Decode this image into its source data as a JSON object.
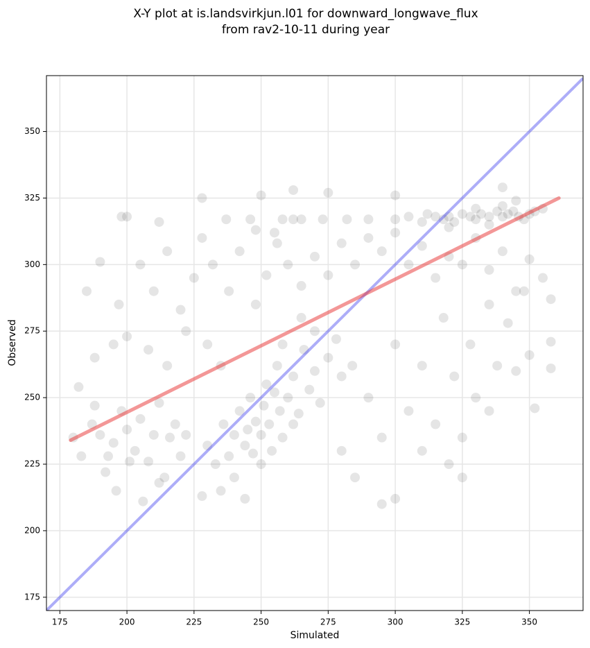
{
  "chart_data": {
    "type": "scatter",
    "title": [
      "X-Y plot at is.landsvirkjun.l01 for downward_longwave_flux",
      "from rav2-10-11 during year"
    ],
    "xlabel": "Simulated",
    "ylabel": "Observed",
    "xlim": [
      170,
      370
    ],
    "ylim": [
      170,
      371
    ],
    "xticks": [
      175,
      200,
      225,
      250,
      275,
      300,
      325,
      350
    ],
    "yticks": [
      175,
      200,
      225,
      250,
      275,
      300,
      325,
      350
    ],
    "grid": true,
    "color": "#000000",
    "x": [
      180,
      183,
      187,
      190,
      192,
      195,
      198,
      200,
      203,
      205,
      208,
      210,
      212,
      214,
      216,
      218,
      220,
      222,
      188,
      196,
      206,
      212,
      201,
      193,
      230,
      233,
      236,
      238,
      240,
      242,
      244,
      245,
      246,
      247,
      248,
      250,
      251,
      252,
      253,
      255,
      256,
      257,
      258,
      260,
      262,
      264,
      266,
      268,
      270,
      272,
      275,
      278,
      240,
      235,
      244,
      228,
      250,
      254,
      262,
      258,
      265,
      270,
      280,
      284,
      300,
      305,
      310,
      312,
      315,
      318,
      320,
      322,
      325,
      328,
      330,
      332,
      335,
      338,
      340,
      342,
      344,
      346,
      348,
      350,
      352,
      355,
      340,
      335,
      345,
      330,
      320,
      237,
      258,
      262,
      265,
      273,
      282,
      290,
      198,
      200,
      212,
      246,
      255,
      248,
      185,
      190,
      197,
      205,
      210,
      215,
      220,
      225,
      228,
      232,
      238,
      242,
      248,
      252,
      256,
      260,
      265,
      270,
      275,
      280,
      285,
      290,
      295,
      300,
      305,
      310,
      315,
      320,
      325,
      330,
      335,
      340,
      345,
      350,
      355,
      358,
      182,
      188,
      195,
      200,
      208,
      215,
      222,
      230,
      235,
      228,
      250,
      262,
      275,
      300,
      340,
      290,
      295,
      300,
      305,
      310,
      315,
      318,
      322,
      325,
      328,
      330,
      335,
      338,
      342,
      345,
      348,
      350,
      320,
      325,
      300,
      295,
      285,
      280,
      310,
      335,
      358,
      358,
      352
    ],
    "y": [
      235,
      228,
      240,
      236,
      222,
      233,
      245,
      238,
      230,
      242,
      226,
      236,
      248,
      220,
      235,
      240,
      228,
      236,
      247,
      215,
      211,
      218,
      226,
      228,
      232,
      225,
      240,
      228,
      236,
      245,
      232,
      238,
      250,
      229,
      241,
      236,
      247,
      255,
      240,
      252,
      262,
      245,
      235,
      250,
      258,
      244,
      268,
      253,
      260,
      248,
      265,
      272,
      220,
      215,
      212,
      213,
      225,
      230,
      240,
      270,
      280,
      275,
      258,
      262,
      317,
      318,
      316,
      319,
      318,
      317,
      318,
      316,
      319,
      318,
      317,
      319,
      318,
      320,
      318,
      319,
      320,
      318,
      317,
      319,
      320,
      321,
      322,
      315,
      324,
      321,
      314,
      317,
      317,
      317,
      317,
      317,
      317,
      317,
      318,
      318,
      316,
      317,
      312,
      313,
      290,
      301,
      285,
      300,
      290,
      305,
      283,
      295,
      310,
      300,
      290,
      305,
      285,
      296,
      308,
      300,
      292,
      303,
      296,
      308,
      300,
      310,
      305,
      312,
      300,
      307,
      295,
      303,
      300,
      310,
      298,
      305,
      290,
      302,
      295,
      287,
      254,
      265,
      270,
      273,
      268,
      262,
      275,
      270,
      262,
      325,
      326,
      328,
      327,
      326,
      329,
      250,
      235,
      270,
      245,
      262,
      240,
      280,
      258,
      235,
      270,
      250,
      285,
      262,
      278,
      260,
      290,
      266,
      225,
      220,
      212,
      210,
      220,
      230,
      230,
      245,
      271,
      261,
      246
    ],
    "fit_line": {
      "x": [
        179,
        361
      ],
      "y": [
        234,
        325
      ],
      "color": "#e83030"
    },
    "identity_line": true,
    "identity_color": "#3333ee"
  }
}
